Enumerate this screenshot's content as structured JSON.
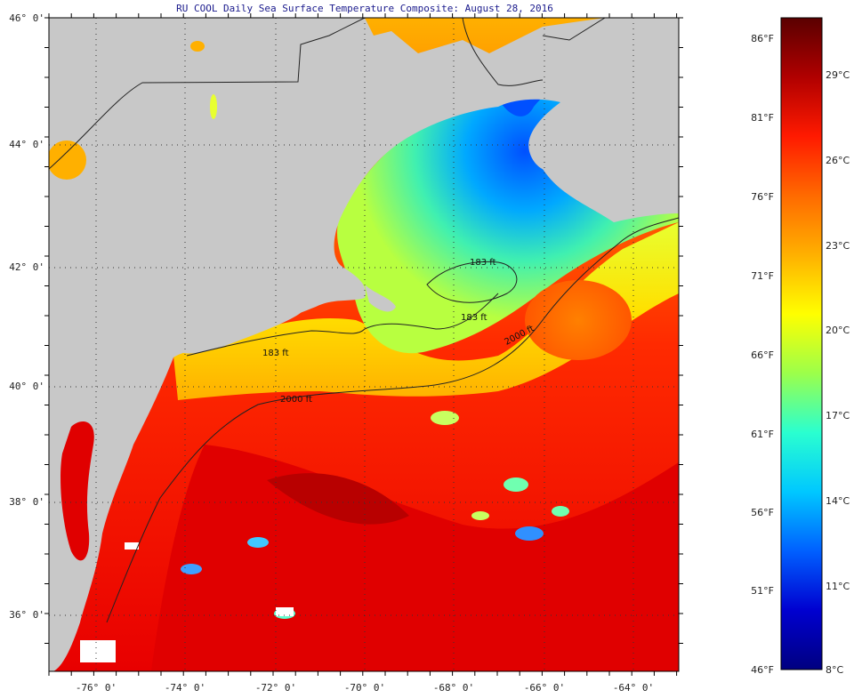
{
  "title": "RU COOL Daily Sea Surface Temperature Composite:  August 28, 2016",
  "latitude_labels": [
    "46° 0'",
    "44° 0'",
    "42° 0'",
    "40° 0'",
    "38° 0'",
    "36° 0'"
  ],
  "longitude_labels": [
    "-76° 0'",
    "-74° 0'",
    "-72° 0'",
    "-70° 0'",
    "-68° 0'",
    "-66° 0'",
    "-64° 0'"
  ],
  "depth_contours": [
    "183 ft",
    "183 ft",
    "183 ft",
    "2000 ft",
    "2000 ft"
  ],
  "colorbar": {
    "fahrenheit_labels": [
      "86°F",
      "81°F",
      "76°F",
      "71°F",
      "66°F",
      "61°F",
      "56°F",
      "51°F",
      "46°F"
    ],
    "celsius_labels": [
      "29°C",
      "26°C",
      "23°C",
      "20°C",
      "17°C",
      "14°C",
      "11°C",
      "8°C"
    ],
    "colors": [
      "#5a0000",
      "#b00000",
      "#ff1a00",
      "#ff6a00",
      "#ffb000",
      "#ffff00",
      "#9cff4a",
      "#2affd0",
      "#00c8ff",
      "#0060ff",
      "#0000d0",
      "#000080"
    ]
  },
  "colors": {
    "land": "#c8c8c8",
    "warm_water": "#ff2200",
    "cool_water": "#00c8ff",
    "cold_water": "#0040ff",
    "title_text": "#1a1a8c"
  }
}
